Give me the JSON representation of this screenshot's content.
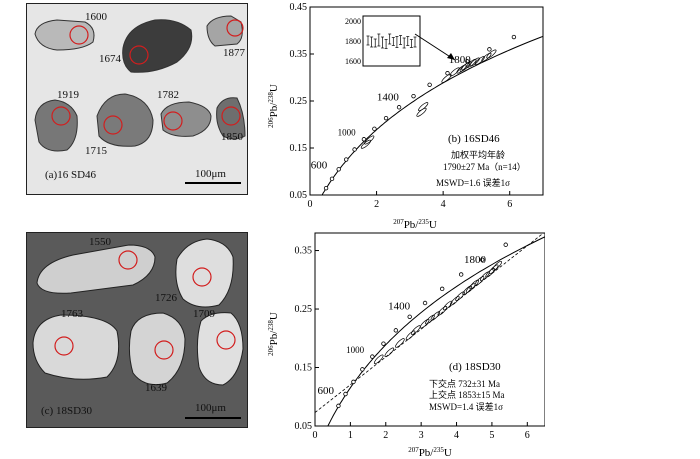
{
  "panel_a": {
    "label": "(a)16 SD46",
    "spot_ages": [
      "1600",
      "1674",
      "1877",
      "1919",
      "1715",
      "1782",
      "1850"
    ],
    "scale_bar": "100μm"
  },
  "panel_c": {
    "label": "(c) 18SD30",
    "spot_ages": [
      "1550",
      "1726",
      "1763",
      "1709",
      "1639"
    ],
    "scale_bar": "100μm"
  },
  "chart_data": [
    {
      "type": "scatter",
      "panel_label": "(b) 16SD46",
      "xlabel_parts": [
        "207",
        "Pb/",
        "235",
        "U"
      ],
      "ylabel_parts": [
        "206",
        "Pb/",
        "238",
        "U"
      ],
      "xlim": [
        0,
        7
      ],
      "ylim": [
        0.05,
        0.45
      ],
      "x_ticks": [
        "0",
        "2",
        "4",
        "6"
      ],
      "y_ticks": [
        "0.05",
        "0.15",
        "0.25",
        "0.35",
        "0.45"
      ],
      "concordia_age_labels": [
        {
          "text": "600",
          "x": 0.82,
          "y": 0.0976
        },
        {
          "text": "1000",
          "x": 1.67,
          "y": 0.1678
        },
        {
          "text": "1400",
          "x": 2.97,
          "y": 0.2425
        },
        {
          "text": "1800",
          "x": 4.89,
          "y": 0.322
        }
      ],
      "concordia_points": [
        {
          "x": 0.483,
          "y": 0.0646
        },
        {
          "x": 0.662,
          "y": 0.0844
        },
        {
          "x": 0.862,
          "y": 0.1047
        },
        {
          "x": 1.087,
          "y": 0.1255
        },
        {
          "x": 1.339,
          "y": 0.1468
        },
        {
          "x": 1.62,
          "y": 0.1686
        },
        {
          "x": 1.935,
          "y": 0.1908
        },
        {
          "x": 2.285,
          "y": 0.2135
        },
        {
          "x": 2.676,
          "y": 0.2367
        },
        {
          "x": 3.11,
          "y": 0.2603
        },
        {
          "x": 3.594,
          "y": 0.2845
        },
        {
          "x": 4.131,
          "y": 0.3091
        },
        {
          "x": 4.727,
          "y": 0.3343
        },
        {
          "x": 5.39,
          "y": 0.3599
        },
        {
          "x": 6.126,
          "y": 0.3861
        }
      ],
      "error_ellipses": [
        {
          "x": 1.78,
          "y": 0.167
        },
        {
          "x": 1.68,
          "y": 0.158
        },
        {
          "x": 3.35,
          "y": 0.226
        },
        {
          "x": 3.4,
          "y": 0.238
        },
        {
          "x": 4.1,
          "y": 0.298
        },
        {
          "x": 4.35,
          "y": 0.312
        },
        {
          "x": 4.55,
          "y": 0.318
        },
        {
          "x": 4.7,
          "y": 0.325
        },
        {
          "x": 4.85,
          "y": 0.33
        },
        {
          "x": 4.95,
          "y": 0.333
        },
        {
          "x": 5.1,
          "y": 0.336
        },
        {
          "x": 5.3,
          "y": 0.343
        },
        {
          "x": 4.65,
          "y": 0.322
        },
        {
          "x": 5.45,
          "y": 0.35
        }
      ],
      "inset": {
        "y_ticks": [
          "2000",
          "1800",
          "1600"
        ],
        "ylim": [
          1550,
          2050
        ],
        "ages": [
          1805,
          1790,
          1780,
          1810,
          1785,
          1770,
          1820,
          1795,
          1790,
          1810,
          1780,
          1800,
          1775,
          1790
        ],
        "errors": [
          45,
          50,
          40,
          60,
          55,
          45,
          50,
          40,
          55,
          45,
          50,
          45,
          40,
          50
        ]
      },
      "annotations": [
        "加权平均年龄",
        "1790±27    Ma（n=14）",
        "MSWD=1.6 误差1σ"
      ]
    },
    {
      "type": "scatter",
      "panel_label": "(d) 18SD30",
      "xlabel_parts": [
        "207",
        "Pb/",
        "235",
        "U"
      ],
      "ylabel_parts": [
        "206",
        "Pb/",
        "238",
        "U"
      ],
      "xlim": [
        0,
        6.5
      ],
      "ylim": [
        0.05,
        0.38
      ],
      "x_ticks": [
        "0",
        "1",
        "2",
        "3",
        "4",
        "5",
        "6"
      ],
      "y_ticks": [
        "0.05",
        "0.15",
        "0.25",
        "0.35"
      ],
      "concordia_age_labels": [
        {
          "text": "600",
          "x": 0.82,
          "y": 0.0976
        },
        {
          "text": "1000",
          "x": 1.67,
          "y": 0.1678
        },
        {
          "text": "1400",
          "x": 2.97,
          "y": 0.2425
        },
        {
          "text": "1800",
          "x": 4.89,
          "y": 0.322
        }
      ],
      "concordia_points": [
        {
          "x": 0.662,
          "y": 0.0844
        },
        {
          "x": 0.862,
          "y": 0.1047
        },
        {
          "x": 1.087,
          "y": 0.1255
        },
        {
          "x": 1.339,
          "y": 0.1468
        },
        {
          "x": 1.62,
          "y": 0.1686
        },
        {
          "x": 1.935,
          "y": 0.1908
        },
        {
          "x": 2.285,
          "y": 0.2135
        },
        {
          "x": 2.676,
          "y": 0.2367
        },
        {
          "x": 3.11,
          "y": 0.2603
        },
        {
          "x": 3.594,
          "y": 0.2845
        },
        {
          "x": 4.131,
          "y": 0.3091
        },
        {
          "x": 4.727,
          "y": 0.3343
        },
        {
          "x": 5.39,
          "y": 0.3599
        }
      ],
      "discordia_line": [
        {
          "x": 0.0,
          "y": 0.073
        },
        {
          "x": 6.5,
          "y": 0.382
        }
      ],
      "error_ellipses": [
        {
          "x": 1.8,
          "y": 0.164
        },
        {
          "x": 2.1,
          "y": 0.176
        },
        {
          "x": 2.4,
          "y": 0.192
        },
        {
          "x": 2.7,
          "y": 0.205
        },
        {
          "x": 2.85,
          "y": 0.214
        },
        {
          "x": 3.1,
          "y": 0.225
        },
        {
          "x": 3.4,
          "y": 0.238
        },
        {
          "x": 3.6,
          "y": 0.247
        },
        {
          "x": 3.75,
          "y": 0.256
        },
        {
          "x": 3.95,
          "y": 0.264
        },
        {
          "x": 4.1,
          "y": 0.272
        },
        {
          "x": 4.3,
          "y": 0.282
        },
        {
          "x": 4.5,
          "y": 0.292
        },
        {
          "x": 4.65,
          "y": 0.298
        },
        {
          "x": 4.8,
          "y": 0.306
        },
        {
          "x": 4.95,
          "y": 0.312
        },
        {
          "x": 5.05,
          "y": 0.318
        },
        {
          "x": 5.15,
          "y": 0.324
        },
        {
          "x": 4.4,
          "y": 0.286
        },
        {
          "x": 3.25,
          "y": 0.232
        }
      ],
      "annotations": [
        "下交点    732±31   Ma",
        "上交点    1853±15  Ma",
        "MSWD=1.4 误差1σ"
      ]
    }
  ]
}
